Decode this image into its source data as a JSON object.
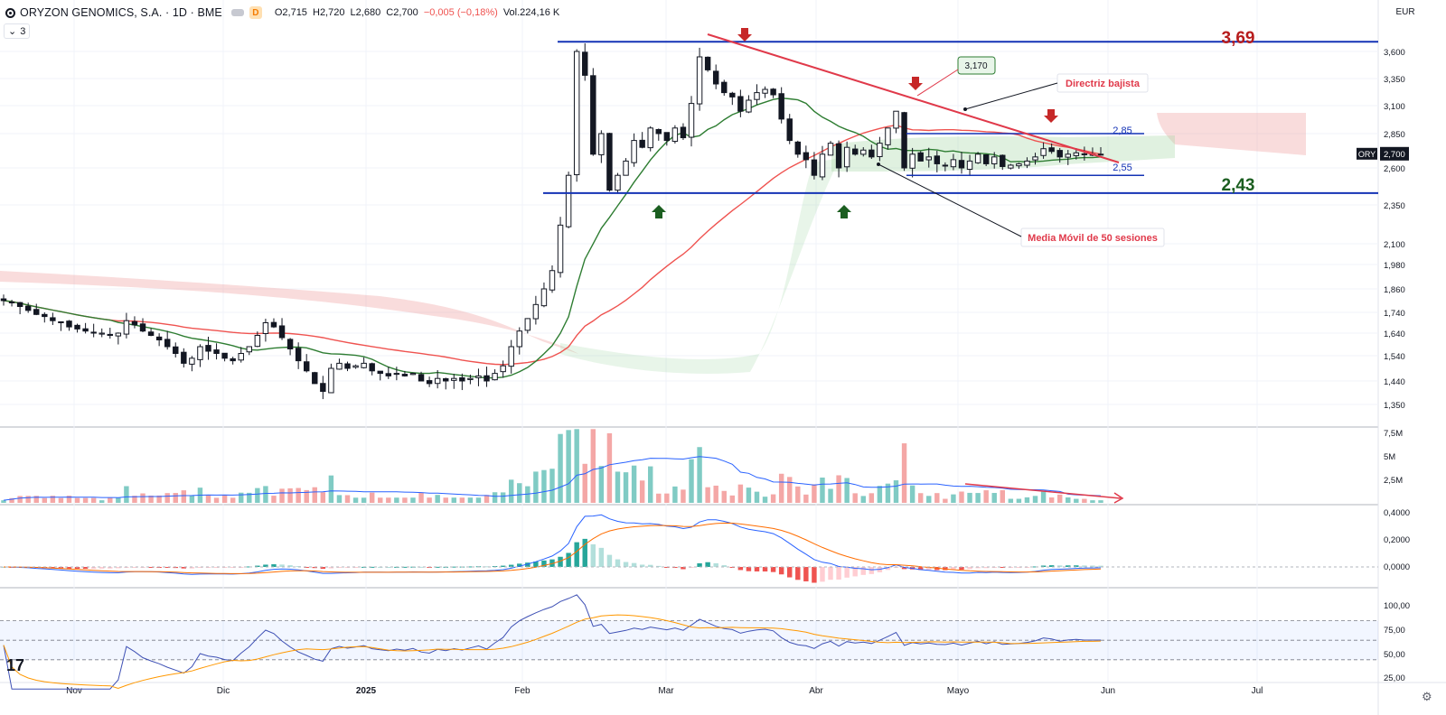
{
  "header": {
    "title": "ORYZON GENOMICS, S.A. · 1D · BME",
    "interval_badge": "D",
    "ohlc": [
      "O2,715",
      "H2,720",
      "L2,680",
      "C2,700",
      "−0,005 (−0,18%)",
      "Vol.224,16 K"
    ]
  },
  "indicator_toggle": {
    "label": "3",
    "icon": "chevron-down-icon"
  },
  "currency": "EUR",
  "last_price": {
    "ticker": "ORY",
    "value": "2,700"
  },
  "logo_text": "17",
  "settings_icon": "gear-icon",
  "colors": {
    "up": "#26a69a",
    "down": "#ef5350",
    "ma_fast": "#2e7d32",
    "ma_slow": "#ef5350",
    "level": "#1433b5",
    "annot": "#e0394a"
  },
  "chart_data": {
    "type": "candlestick",
    "x_ticks": [
      "Nov",
      "Dic",
      "2025",
      "Feb",
      "Mar",
      "Abr",
      "Mayo",
      "Jun",
      "Jul"
    ],
    "y_ticks": [
      "3,600",
      "3,350",
      "3,100",
      "2,850",
      "2,600",
      "2,350",
      "2,100",
      "1,980",
      "1,860",
      "1,740",
      "1,640",
      "1,540",
      "1,440",
      "1,350"
    ],
    "closes": [
      1.8,
      1.79,
      1.77,
      1.75,
      1.73,
      1.72,
      1.7,
      1.69,
      1.67,
      1.66,
      1.65,
      1.64,
      1.64,
      1.63,
      1.64,
      1.7,
      1.68,
      1.65,
      1.63,
      1.61,
      1.58,
      1.55,
      1.51,
      1.53,
      1.58,
      1.56,
      1.55,
      1.53,
      1.52,
      1.55,
      1.58,
      1.63,
      1.69,
      1.67,
      1.62,
      1.57,
      1.52,
      1.48,
      1.43,
      1.4,
      1.49,
      1.51,
      1.49,
      1.5,
      1.51,
      1.48,
      1.47,
      1.46,
      1.47,
      1.46,
      1.47,
      1.44,
      1.43,
      1.45,
      1.44,
      1.45,
      1.44,
      1.45,
      1.46,
      1.44,
      1.47,
      1.5,
      1.58,
      1.65,
      1.71,
      1.78,
      1.86,
      1.95,
      2.22,
      2.55,
      3.6,
      3.38,
      2.7,
      2.85,
      2.45,
      2.55,
      2.65,
      2.8,
      2.75,
      2.9,
      2.85,
      2.8,
      2.9,
      2.82,
      3.12,
      3.55,
      3.43,
      3.3,
      3.22,
      3.18,
      3.05,
      3.15,
      3.22,
      3.25,
      3.2,
      2.98,
      2.8,
      2.7,
      2.66,
      2.55,
      2.7,
      2.78,
      2.6,
      2.75,
      2.7,
      2.73,
      2.68,
      2.78,
      2.9,
      3.05,
      2.6,
      2.7,
      2.65,
      2.68,
      2.63,
      2.62,
      2.66,
      2.6,
      2.65,
      2.7,
      2.63,
      2.68,
      2.61,
      2.62,
      2.63,
      2.65,
      2.68,
      2.74,
      2.72,
      2.68,
      2.7,
      2.71,
      2.7,
      2.7,
      2.7
    ],
    "annotations": {
      "resistance": "3,69",
      "support": "2,43",
      "range_high": "2,85",
      "range_low": "2,55",
      "peak_label": "3,170",
      "trend_label": "Directriz bajista",
      "ma_label": "Media Móvil de 50 sesiones"
    },
    "volume": {
      "y_ticks": [
        "7,5M",
        "5M",
        "2,5M"
      ]
    },
    "macd": {
      "y_ticks": [
        "0,4000",
        "0,2000",
        "0,0000"
      ]
    },
    "rsi": {
      "y_ticks": [
        "100,00",
        "75,00",
        "50,00",
        "25,00"
      ]
    }
  }
}
